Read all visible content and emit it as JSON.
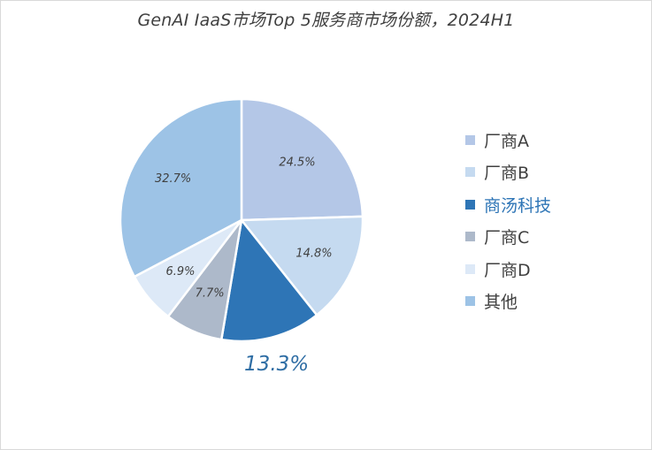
{
  "chart_data": {
    "type": "pie",
    "title": "GenAI IaaS市场Top 5服务商市场份额，2024H1",
    "slices": [
      {
        "label": "厂商A",
        "value": 24.5,
        "value_label": "24.5%",
        "color": "#b4c7e7"
      },
      {
        "label": "厂商B",
        "value": 14.8,
        "value_label": "14.8%",
        "color": "#c5daf0"
      },
      {
        "label": "商汤科技",
        "value": 13.3,
        "value_label": "13.3%",
        "color": "#2e75b6",
        "highlighted": true
      },
      {
        "label": "厂商C",
        "value": 7.7,
        "value_label": "7.7%",
        "color": "#adb9ca"
      },
      {
        "label": "厂商D",
        "value": 6.9,
        "value_label": "6.9%",
        "color": "#dde9f7"
      },
      {
        "label": "其他",
        "value": 32.7,
        "value_label": "32.7%",
        "color": "#9dc3e6"
      }
    ],
    "start_angle": "12 o'clock",
    "direction": "clockwise",
    "legend_position": "right"
  }
}
